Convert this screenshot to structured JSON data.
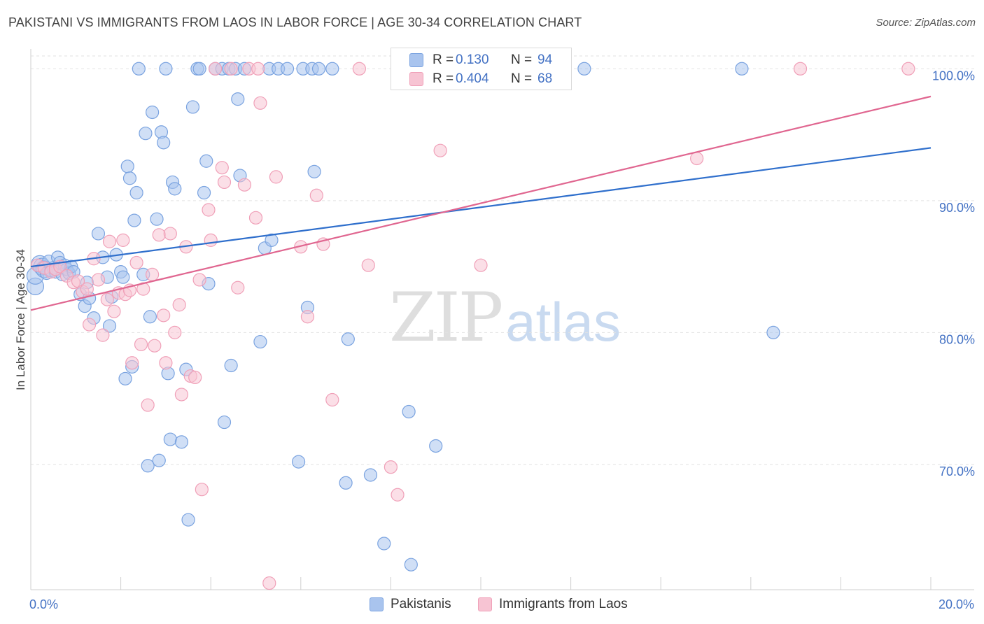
{
  "header": {
    "title": "PAKISTANI VS IMMIGRANTS FROM LAOS IN LABOR FORCE | AGE 30-34 CORRELATION CHART",
    "source": "Source: ZipAtlas.com"
  },
  "watermark": {
    "zip": "ZIP",
    "atlas": "atlas"
  },
  "legend_top": [
    {
      "r_label": "R =",
      "r_value": "0.130",
      "n_label": "N =",
      "n_value": "94"
    },
    {
      "r_label": "R =",
      "r_value": "0.404",
      "n_label": "N =",
      "n_value": "68"
    }
  ],
  "chart_data": {
    "type": "scatter",
    "title": "PAKISTANI VS IMMIGRANTS FROM LAOS IN LABOR FORCE | AGE 30-34 CORRELATION CHART",
    "xlabel": "",
    "ylabel": "In Labor Force | Age 30-34",
    "xlim": [
      0,
      20
    ],
    "ylim": [
      60.5,
      101.5
    ],
    "x_ticks": [
      0,
      20
    ],
    "x_tick_labels": [
      "0.0%",
      "20.0%"
    ],
    "y_ticks": [
      70,
      80,
      90,
      100
    ],
    "y_tick_labels": [
      "70.0%",
      "80.0%",
      "90.0%",
      "100.0%"
    ],
    "grid": true,
    "legend_placement": "bottom-center",
    "series": [
      {
        "name": "Pakistanis",
        "color": "#7aa3e0",
        "fill": "#a9c4ee",
        "line_color": "#2f6fcc",
        "r": "0.130",
        "n": "94",
        "trend": {
          "x": [
            0,
            20
          ],
          "y": [
            85.0,
            94.0
          ]
        },
        "points": [
          [
            0.1,
            83.5
          ],
          [
            0.1,
            84.3
          ],
          [
            0.2,
            85.2
          ],
          [
            0.25,
            85.0
          ],
          [
            0.3,
            84.8
          ],
          [
            0.35,
            84.5
          ],
          [
            0.4,
            85.4
          ],
          [
            0.45,
            84.7
          ],
          [
            0.5,
            84.9
          ],
          [
            0.55,
            84.6
          ],
          [
            0.6,
            85.7
          ],
          [
            0.65,
            85.3
          ],
          [
            0.7,
            84.4
          ],
          [
            0.75,
            85.1
          ],
          [
            0.8,
            84.8
          ],
          [
            0.85,
            84.5
          ],
          [
            0.9,
            85.0
          ],
          [
            0.95,
            84.6
          ],
          [
            1.1,
            82.9
          ],
          [
            1.2,
            82.0
          ],
          [
            1.25,
            83.8
          ],
          [
            1.3,
            82.6
          ],
          [
            1.4,
            81.1
          ],
          [
            1.5,
            87.5
          ],
          [
            1.6,
            85.7
          ],
          [
            1.7,
            84.2
          ],
          [
            1.75,
            80.5
          ],
          [
            1.8,
            82.7
          ],
          [
            1.9,
            85.9
          ],
          [
            2.0,
            84.6
          ],
          [
            2.05,
            84.2
          ],
          [
            2.1,
            76.5
          ],
          [
            2.15,
            92.6
          ],
          [
            2.2,
            91.7
          ],
          [
            2.25,
            77.4
          ],
          [
            2.3,
            88.5
          ],
          [
            2.35,
            90.6
          ],
          [
            2.4,
            100
          ],
          [
            2.5,
            84.4
          ],
          [
            2.55,
            95.1
          ],
          [
            2.6,
            69.9
          ],
          [
            2.65,
            81.2
          ],
          [
            2.7,
            96.7
          ],
          [
            2.8,
            88.6
          ],
          [
            2.85,
            70.3
          ],
          [
            2.9,
            95.2
          ],
          [
            2.95,
            94.4
          ],
          [
            3.0,
            100
          ],
          [
            3.05,
            76.9
          ],
          [
            3.1,
            71.9
          ],
          [
            3.15,
            91.4
          ],
          [
            3.2,
            90.9
          ],
          [
            3.35,
            71.7
          ],
          [
            3.45,
            77.2
          ],
          [
            3.5,
            65.8
          ],
          [
            3.6,
            97.1
          ],
          [
            3.7,
            100
          ],
          [
            3.75,
            100
          ],
          [
            3.85,
            90.6
          ],
          [
            3.9,
            93.0
          ],
          [
            3.95,
            83.7
          ],
          [
            4.1,
            100
          ],
          [
            4.25,
            100
          ],
          [
            4.3,
            73.2
          ],
          [
            4.4,
            100
          ],
          [
            4.45,
            77.5
          ],
          [
            4.55,
            100
          ],
          [
            4.6,
            97.7
          ],
          [
            4.65,
            91.9
          ],
          [
            4.75,
            100
          ],
          [
            5.1,
            79.3
          ],
          [
            5.2,
            86.4
          ],
          [
            5.3,
            100
          ],
          [
            5.35,
            87.0
          ],
          [
            5.5,
            100
          ],
          [
            5.7,
            100
          ],
          [
            5.95,
            70.2
          ],
          [
            6.05,
            100
          ],
          [
            6.15,
            81.9
          ],
          [
            6.25,
            100
          ],
          [
            6.3,
            92.2
          ],
          [
            6.4,
            100
          ],
          [
            6.7,
            100
          ],
          [
            7.0,
            68.6
          ],
          [
            7.05,
            79.5
          ],
          [
            7.55,
            69.2
          ],
          [
            7.85,
            64.0
          ],
          [
            8.4,
            74.0
          ],
          [
            8.45,
            62.4
          ],
          [
            9.0,
            71.4
          ],
          [
            9.1,
            100
          ],
          [
            12.3,
            100
          ],
          [
            15.8,
            100
          ],
          [
            16.5,
            80.0
          ]
        ]
      },
      {
        "name": "Immigrants from Laos",
        "color": "#f0a0b8",
        "fill": "#f7c4d3",
        "line_color": "#e06690",
        "r": "0.404",
        "n": "68",
        "trend": {
          "x": [
            0,
            20
          ],
          "y": [
            81.7,
            97.9
          ]
        },
        "points": [
          [
            0.15,
            85.1
          ],
          [
            0.3,
            84.9
          ],
          [
            0.45,
            84.6
          ],
          [
            0.55,
            84.8
          ],
          [
            0.65,
            85.0
          ],
          [
            0.8,
            84.3
          ],
          [
            0.95,
            83.8
          ],
          [
            1.05,
            83.9
          ],
          [
            1.15,
            83.1
          ],
          [
            1.25,
            83.3
          ],
          [
            1.3,
            80.6
          ],
          [
            1.4,
            85.6
          ],
          [
            1.5,
            84.0
          ],
          [
            1.6,
            79.8
          ],
          [
            1.7,
            82.5
          ],
          [
            1.75,
            86.9
          ],
          [
            1.85,
            81.6
          ],
          [
            1.95,
            83.0
          ],
          [
            2.05,
            87.0
          ],
          [
            2.1,
            82.9
          ],
          [
            2.2,
            83.2
          ],
          [
            2.25,
            77.7
          ],
          [
            2.35,
            85.3
          ],
          [
            2.45,
            79.1
          ],
          [
            2.5,
            83.3
          ],
          [
            2.6,
            74.5
          ],
          [
            2.7,
            84.4
          ],
          [
            2.75,
            79.0
          ],
          [
            2.85,
            87.4
          ],
          [
            2.95,
            81.3
          ],
          [
            3.0,
            77.7
          ],
          [
            3.1,
            87.5
          ],
          [
            3.2,
            80.0
          ],
          [
            3.3,
            82.1
          ],
          [
            3.35,
            75.3
          ],
          [
            3.45,
            86.5
          ],
          [
            3.55,
            76.7
          ],
          [
            3.65,
            76.6
          ],
          [
            3.75,
            84.0
          ],
          [
            3.8,
            68.1
          ],
          [
            3.95,
            89.3
          ],
          [
            4.0,
            87.0
          ],
          [
            4.1,
            100
          ],
          [
            4.25,
            92.5
          ],
          [
            4.3,
            91.4
          ],
          [
            4.45,
            100
          ],
          [
            4.6,
            83.4
          ],
          [
            4.75,
            91.2
          ],
          [
            4.85,
            100
          ],
          [
            5.0,
            88.7
          ],
          [
            5.05,
            100
          ],
          [
            5.1,
            97.4
          ],
          [
            5.3,
            61.0
          ],
          [
            5.45,
            91.8
          ],
          [
            6.0,
            86.5
          ],
          [
            6.15,
            81.2
          ],
          [
            6.35,
            90.4
          ],
          [
            6.5,
            86.7
          ],
          [
            6.7,
            74.9
          ],
          [
            7.3,
            100
          ],
          [
            7.5,
            85.1
          ],
          [
            8.0,
            69.8
          ],
          [
            8.15,
            67.7
          ],
          [
            9.1,
            93.8
          ],
          [
            10.0,
            85.1
          ],
          [
            14.8,
            93.2
          ],
          [
            17.1,
            100
          ],
          [
            19.5,
            100
          ]
        ]
      }
    ]
  },
  "legend_bottom": [
    "Pakistanis",
    "Immigrants from Laos"
  ]
}
